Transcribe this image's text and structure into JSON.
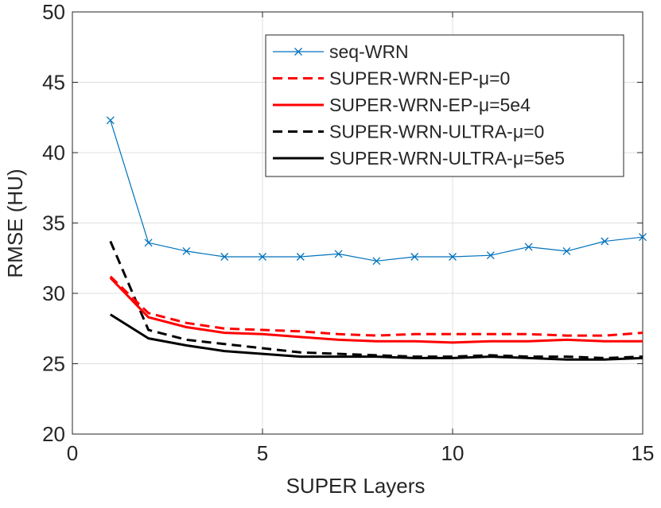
{
  "chart_data": {
    "type": "line",
    "title": "",
    "xlabel": "SUPER Layers",
    "ylabel": "RMSE (HU)",
    "xlim": [
      0,
      15
    ],
    "ylim": [
      20,
      50
    ],
    "xticks": [
      0,
      5,
      10,
      15
    ],
    "yticks": [
      20,
      25,
      30,
      35,
      40,
      45,
      50
    ],
    "xtick_labels": [
      "0",
      "5",
      "10",
      "15"
    ],
    "ytick_labels": [
      "20",
      "25",
      "30",
      "35",
      "40",
      "45",
      "50"
    ],
    "grid": true,
    "legend_position": "top-right",
    "x": [
      1,
      2,
      3,
      4,
      5,
      6,
      7,
      8,
      9,
      10,
      11,
      12,
      13,
      14,
      15
    ],
    "series": [
      {
        "name": "seq-WRN",
        "color": "#0072BD",
        "style": "solid",
        "marker": "x",
        "values": [
          42.3,
          33.6,
          33.0,
          32.6,
          32.6,
          32.6,
          32.8,
          32.3,
          32.6,
          32.6,
          32.7,
          33.3,
          33.0,
          33.7,
          34.0
        ]
      },
      {
        "name": "SUPER-WRN-EP-μ=0",
        "color": "#FF0000",
        "style": "dashed",
        "marker": "none",
        "values": [
          31.2,
          28.6,
          27.9,
          27.5,
          27.4,
          27.3,
          27.1,
          27.0,
          27.1,
          27.1,
          27.1,
          27.1,
          27.0,
          27.0,
          27.2
        ]
      },
      {
        "name": "SUPER-WRN-EP-μ=5e4",
        "color": "#FF0000",
        "style": "solid",
        "marker": "none",
        "values": [
          31.1,
          28.3,
          27.6,
          27.2,
          27.1,
          26.9,
          26.7,
          26.6,
          26.6,
          26.5,
          26.6,
          26.6,
          26.7,
          26.6,
          26.6
        ]
      },
      {
        "name": "SUPER-WRN-ULTRA-μ=0",
        "color": "#000000",
        "style": "dashed",
        "marker": "none",
        "values": [
          33.7,
          27.4,
          26.7,
          26.4,
          26.1,
          25.8,
          25.7,
          25.6,
          25.5,
          25.5,
          25.6,
          25.5,
          25.5,
          25.4,
          25.5
        ]
      },
      {
        "name": "SUPER-WRN-ULTRA-μ=5e5",
        "color": "#000000",
        "style": "solid",
        "marker": "none",
        "values": [
          28.5,
          26.8,
          26.3,
          25.9,
          25.7,
          25.5,
          25.5,
          25.5,
          25.4,
          25.4,
          25.5,
          25.4,
          25.3,
          25.3,
          25.4
        ]
      }
    ]
  }
}
